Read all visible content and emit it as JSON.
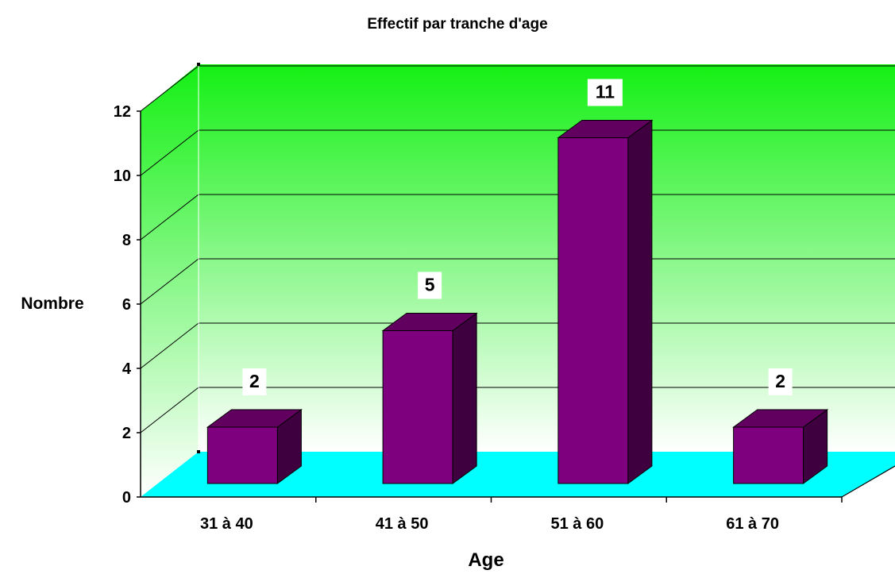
{
  "chart_data": {
    "type": "bar",
    "title": "Effectif par tranche d'age",
    "xlabel": "Age",
    "ylabel": "Nombre",
    "categories": [
      "31 à 40",
      "41 à 50",
      "51 à 60",
      "61 à 70"
    ],
    "series": [
      {
        "values": [
          2,
          5,
          11,
          2
        ]
      }
    ],
    "data_labels": [
      "2",
      "5",
      "11",
      "2"
    ],
    "ylim": [
      0,
      12
    ],
    "yticks": [
      "0",
      "2",
      "4",
      "6",
      "8",
      "10",
      "12"
    ],
    "grid": true,
    "legend": "none",
    "three_d": true,
    "colors": {
      "bar_front": "#7f007f",
      "bar_top": "#62005f",
      "bar_side": "#3f0040",
      "wall_top": "#14f014",
      "wall_bottom": "#ffffff",
      "floor": "#00ffff",
      "gridline": "#000000"
    }
  }
}
